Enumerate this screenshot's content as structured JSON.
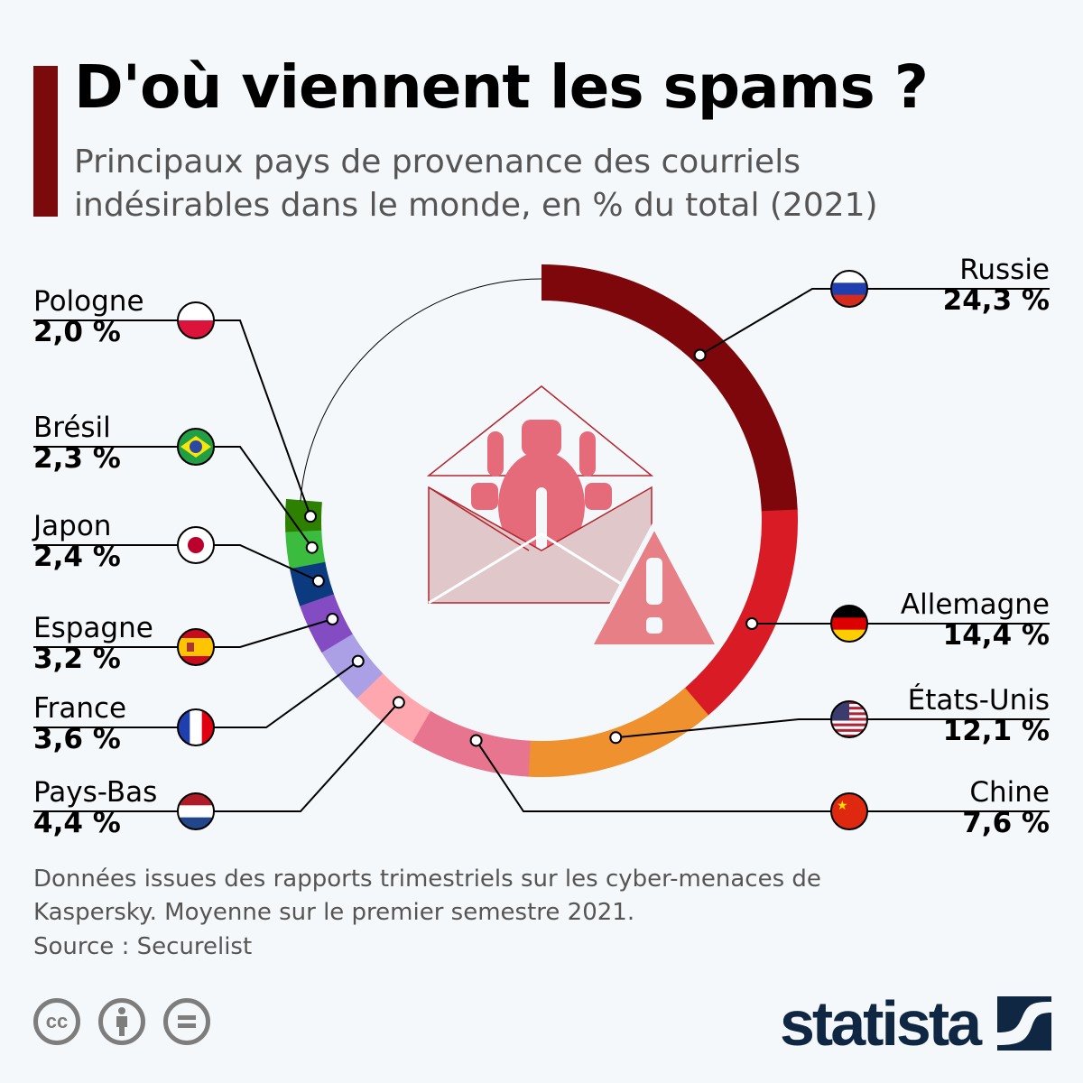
{
  "header": {
    "title": "D'où viennent les spams ?",
    "subtitle": "Principaux pays de provenance des courriels indésirables dans le monde, en % du total (2021)"
  },
  "chart_data": {
    "type": "pie",
    "style": "donut",
    "unit": "%",
    "categories": [
      "Russie",
      "Allemagne",
      "États-Unis",
      "Chine",
      "Pays-Bas",
      "France",
      "Espagne",
      "Japon",
      "Brésil",
      "Pologne"
    ],
    "values": [
      24.3,
      14.4,
      12.1,
      7.6,
      4.4,
      3.6,
      3.2,
      2.4,
      2.3,
      2.0
    ],
    "value_labels": [
      "24,3 %",
      "14,4 %",
      "12,1 %",
      "7,6 %",
      "4,4 %",
      "3,6 %",
      "3,2 %",
      "2,4 %",
      "2,3 %",
      "2,0 %"
    ],
    "colors": [
      "#7d070b",
      "#d81b25",
      "#ef912e",
      "#e87590",
      "#fea7ae",
      "#ab9fe5",
      "#834cc3",
      "#0c3a7e",
      "#3bbc3e",
      "#2d8000"
    ],
    "flags": [
      "russia",
      "germany",
      "usa",
      "china",
      "netherlands",
      "france",
      "spain",
      "japan",
      "brazil",
      "poland"
    ]
  },
  "footer": {
    "note": "Données issues des rapports trimestriels sur les cyber-menaces de Kaspersky. Moyenne sur le premier semestre 2021.",
    "source": "Source : Securelist",
    "license_icons": [
      "cc-icon",
      "attribution-icon",
      "no-derivatives-icon"
    ],
    "logo": "statista"
  }
}
